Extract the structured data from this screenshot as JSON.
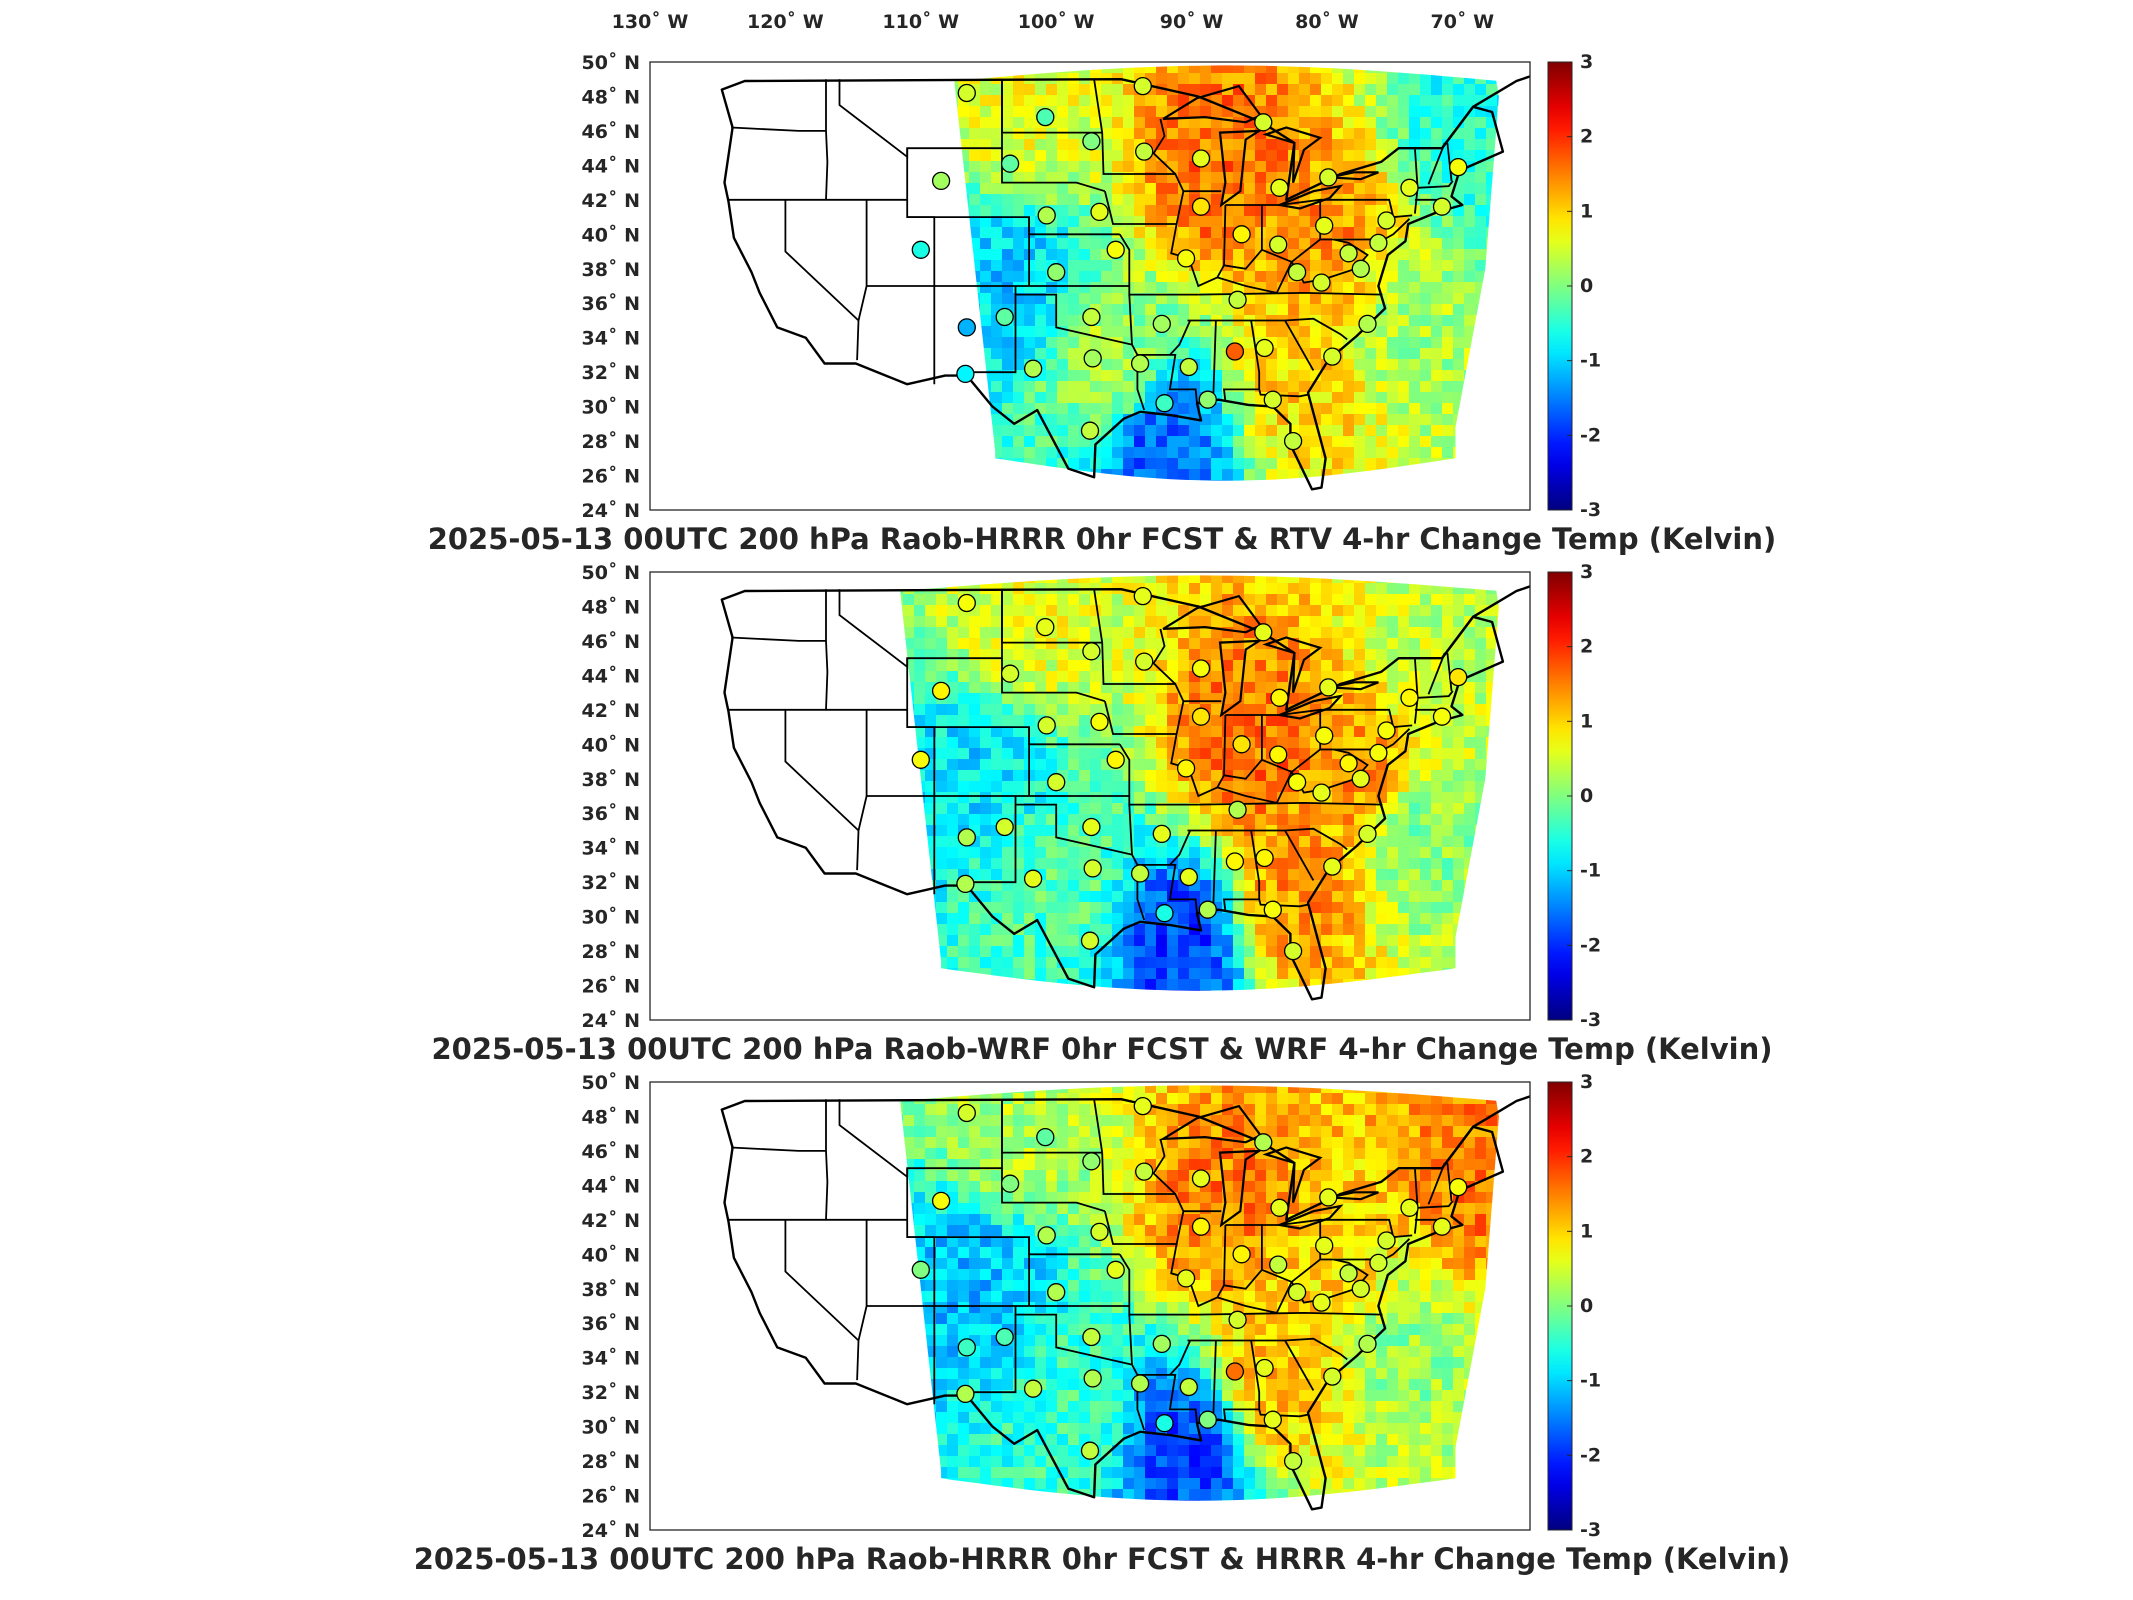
{
  "colorbar": {
    "min": -3,
    "max": 3,
    "ticks": [
      "3",
      "2",
      "1",
      "0",
      "-1",
      "-2",
      "-3"
    ]
  },
  "lon_axis": {
    "labels": [
      "130˚ W",
      "120˚ W",
      "110˚ W",
      "100˚ W",
      "90˚ W",
      "80˚ W",
      "70˚ W"
    ]
  },
  "lat_axis": {
    "labels": [
      "50˚ N",
      "48˚ N",
      "46˚ N",
      "44˚ N",
      "42˚ N",
      "40˚ N",
      "38˚ N",
      "36˚ N",
      "34˚ N",
      "32˚ N",
      "30˚ N",
      "28˚ N",
      "26˚ N",
      "24˚ N"
    ]
  },
  "panels": [
    {
      "title": "2025-05-13 00UTC 200 hPa Raob-HRRR 0hr FCST & RTV 4-hr Change Temp (Kelvin)"
    },
    {
      "title": "2025-05-13 00UTC 200 hPa Raob-WRF 0hr FCST & WRF 4-hr Change Temp (Kelvin)"
    },
    {
      "title": "2025-05-13 00UTC 200 hPa Raob-HRRR 0hr FCST & HRRR 4-hr Change Temp (Kelvin)"
    }
  ],
  "map_data": {
    "projection": "Lambert conformal conic",
    "extent": {
      "lon": [
        -130,
        -65
      ],
      "lat": [
        24,
        50
      ]
    },
    "stations": [
      {
        "lon": -106.6,
        "lat": 48.2,
        "values": [
          0.5,
          0.7,
          0.5
        ]
      },
      {
        "lon": -100.8,
        "lat": 46.8,
        "values": [
          -0.3,
          0.6,
          -0.2
        ]
      },
      {
        "lon": -97.4,
        "lat": 45.4,
        "values": [
          0.0,
          0.5,
          0.1
        ]
      },
      {
        "lon": -93.6,
        "lat": 48.6,
        "values": [
          0.5,
          0.6,
          0.6
        ]
      },
      {
        "lon": -93.5,
        "lat": 44.8,
        "values": [
          0.4,
          0.5,
          0.4
        ]
      },
      {
        "lon": -89.3,
        "lat": 44.4,
        "values": [
          0.6,
          0.7,
          0.6
        ]
      },
      {
        "lon": -84.7,
        "lat": 46.5,
        "values": [
          0.5,
          0.6,
          0.3
        ]
      },
      {
        "lon": -83.5,
        "lat": 42.7,
        "values": [
          0.6,
          0.8,
          0.6
        ]
      },
      {
        "lon": -103.4,
        "lat": 44.1,
        "values": [
          -0.2,
          0.5,
          0.0
        ]
      },
      {
        "lon": -108.5,
        "lat": 43.1,
        "values": [
          0.2,
          0.8,
          0.7
        ]
      },
      {
        "lon": -110.0,
        "lat": 39.1,
        "values": [
          -0.6,
          0.7,
          0.0
        ]
      },
      {
        "lon": -106.6,
        "lat": 34.6,
        "values": [
          -1.2,
          0.3,
          -0.4
        ]
      },
      {
        "lon": -106.7,
        "lat": 31.9,
        "values": [
          -0.8,
          0.3,
          0.3
        ]
      },
      {
        "lon": -103.8,
        "lat": 35.2,
        "values": [
          -0.2,
          0.5,
          -0.3
        ]
      },
      {
        "lon": -100.7,
        "lat": 41.1,
        "values": [
          0.3,
          0.5,
          0.3
        ]
      },
      {
        "lon": -96.8,
        "lat": 41.3,
        "values": [
          0.6,
          0.7,
          0.5
        ]
      },
      {
        "lon": -95.6,
        "lat": 39.1,
        "values": [
          0.7,
          0.8,
          0.6
        ]
      },
      {
        "lon": -100.0,
        "lat": 37.8,
        "values": [
          0.1,
          0.5,
          0.3
        ]
      },
      {
        "lon": -97.4,
        "lat": 35.2,
        "values": [
          0.4,
          0.6,
          0.4
        ]
      },
      {
        "lon": -101.7,
        "lat": 32.2,
        "values": [
          0.3,
          0.6,
          0.4
        ]
      },
      {
        "lon": -97.3,
        "lat": 32.8,
        "values": [
          0.2,
          0.5,
          0.3
        ]
      },
      {
        "lon": -97.5,
        "lat": 28.6,
        "values": [
          0.4,
          0.5,
          0.4
        ]
      },
      {
        "lon": -92.2,
        "lat": 34.8,
        "values": [
          0.2,
          0.6,
          0.2
        ]
      },
      {
        "lon": -93.8,
        "lat": 32.5,
        "values": [
          0.3,
          0.4,
          0.3
        ]
      },
      {
        "lon": -92.0,
        "lat": 30.2,
        "values": [
          -0.4,
          -0.6,
          -0.6
        ]
      },
      {
        "lon": -90.2,
        "lat": 32.3,
        "values": [
          0.4,
          0.6,
          0.4
        ]
      },
      {
        "lon": -88.8,
        "lat": 30.4,
        "values": [
          0.1,
          0.3,
          0.0
        ]
      },
      {
        "lon": -86.8,
        "lat": 33.2,
        "values": [
          1.7,
          0.8,
          1.6
        ]
      },
      {
        "lon": -86.6,
        "lat": 36.2,
        "values": [
          0.4,
          0.3,
          0.5
        ]
      },
      {
        "lon": -90.4,
        "lat": 38.6,
        "values": [
          0.7,
          0.8,
          0.6
        ]
      },
      {
        "lon": -89.3,
        "lat": 41.6,
        "values": [
          0.9,
          0.9,
          0.8
        ]
      },
      {
        "lon": -86.3,
        "lat": 40.0,
        "values": [
          0.8,
          0.9,
          0.8
        ]
      },
      {
        "lon": -83.6,
        "lat": 39.4,
        "values": [
          0.5,
          0.8,
          0.4
        ]
      },
      {
        "lon": -80.2,
        "lat": 40.5,
        "values": [
          0.6,
          0.7,
          0.6
        ]
      },
      {
        "lon": -82.2,
        "lat": 37.8,
        "values": [
          0.4,
          0.7,
          0.5
        ]
      },
      {
        "lon": -80.4,
        "lat": 37.2,
        "values": [
          0.5,
          0.6,
          0.6
        ]
      },
      {
        "lon": -78.4,
        "lat": 38.9,
        "values": [
          0.4,
          0.8,
          0.4
        ]
      },
      {
        "lon": -77.5,
        "lat": 38.0,
        "values": [
          0.3,
          0.6,
          0.5
        ]
      },
      {
        "lon": -77.0,
        "lat": 34.8,
        "values": [
          0.3,
          0.5,
          0.3
        ]
      },
      {
        "lon": -79.6,
        "lat": 32.9,
        "values": [
          0.5,
          0.6,
          0.5
        ]
      },
      {
        "lon": -84.0,
        "lat": 30.4,
        "values": [
          0.5,
          0.7,
          0.6
        ]
      },
      {
        "lon": -82.5,
        "lat": 28.0,
        "values": [
          0.4,
          0.5,
          0.4
        ]
      },
      {
        "lon": -84.6,
        "lat": 33.4,
        "values": [
          0.6,
          0.8,
          0.6
        ]
      },
      {
        "lon": -79.9,
        "lat": 43.3,
        "values": [
          0.5,
          0.6,
          0.6
        ]
      },
      {
        "lon": -75.6,
        "lat": 40.8,
        "values": [
          0.5,
          0.7,
          0.5
        ]
      },
      {
        "lon": -73.9,
        "lat": 42.7,
        "values": [
          0.6,
          0.8,
          0.6
        ]
      },
      {
        "lon": -70.3,
        "lat": 43.9,
        "values": [
          0.7,
          0.9,
          0.7
        ]
      },
      {
        "lon": -71.5,
        "lat": 41.6,
        "values": [
          0.5,
          0.7,
          0.6
        ]
      },
      {
        "lon": -76.2,
        "lat": 39.5,
        "values": [
          0.4,
          0.7,
          0.5
        ]
      }
    ]
  },
  "colors": {
    "colormap": "jet",
    "state_lines": "#000000",
    "station_edge": "#000000"
  }
}
